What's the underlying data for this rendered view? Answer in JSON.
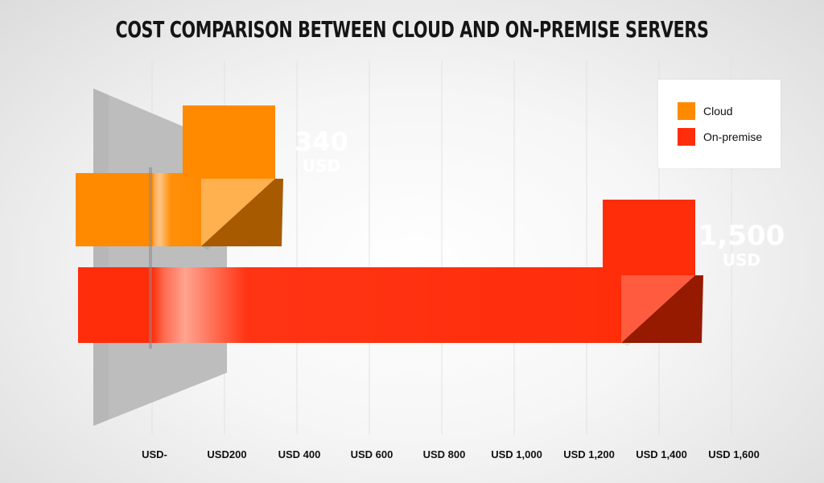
{
  "title": "COST COMPARISON BETWEEN CLOUD AND ON-PREMISE SERVERS",
  "legend": [
    {
      "label": "Cloud",
      "color": "#ff8a00"
    },
    {
      "label": "On-premise",
      "color": "#ff2d0a"
    }
  ],
  "chart_data": {
    "type": "bar",
    "orientation": "horizontal",
    "style": "3d",
    "title": "COST COMPARISON BETWEEN CLOUD AND ON-PREMISE SERVERS",
    "xlim": [
      0,
      1600
    ],
    "grid": true,
    "legend_position": "top-right",
    "tick_labels": [
      "USD-",
      "USD200",
      "USD 400",
      "USD 600",
      "USD 800",
      "USD 1,000",
      "USD 1,200",
      "USD 1,400",
      "USD 1,600"
    ],
    "series": [
      {
        "name": "Cloud",
        "value": 340,
        "value_label": "340",
        "unit_label": "USD",
        "color": "#ff8a00"
      },
      {
        "name": "On-premise",
        "value": 1500,
        "value_label": "1,500",
        "unit_label": "USD",
        "color": "#ff2d0a"
      }
    ]
  }
}
